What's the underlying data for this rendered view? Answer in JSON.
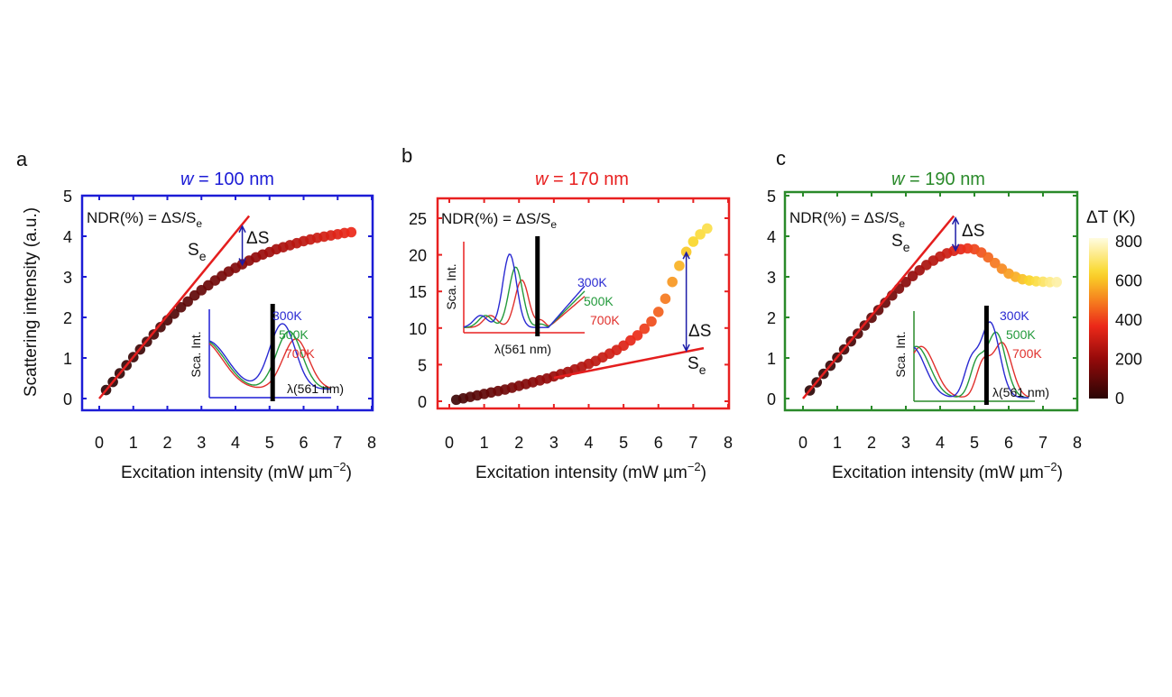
{
  "chart_data": [
    {
      "panel_label": "a",
      "type": "scatter",
      "title_var": "w",
      "title_rest": " = 100 nm",
      "frame_color": "#1c1cd6",
      "xlabel": {
        "main": "Excitation intensity (mW µm",
        "sup": "−2",
        "end": ")"
      },
      "ylabel": "Scattering intensity (a.u.)",
      "xlim": [
        0,
        8
      ],
      "ylim": [
        0,
        5
      ],
      "xticks": [
        "0",
        "1",
        "2",
        "3",
        "4",
        "5",
        "6",
        "7",
        "8"
      ],
      "yticks": [
        "0",
        "1",
        "2",
        "3",
        "4",
        "5"
      ],
      "formula": {
        "main": "NDR(%) = ΔS/S",
        "sub": "e"
      },
      "se_label": {
        "main": "S",
        "sub": "e"
      },
      "delta_label": "ΔS",
      "series": {
        "x": [
          0.2,
          0.4,
          0.6,
          0.8,
          1.0,
          1.2,
          1.4,
          1.6,
          1.8,
          2.0,
          2.2,
          2.4,
          2.6,
          2.8,
          3.0,
          3.2,
          3.4,
          3.6,
          3.8,
          4.0,
          4.2,
          4.4,
          4.6,
          4.8,
          5.0,
          5.2,
          5.4,
          5.6,
          5.8,
          6.0,
          6.2,
          6.4,
          6.6,
          6.8,
          7.0,
          7.2,
          7.4
        ],
        "y": [
          0.21,
          0.41,
          0.62,
          0.82,
          1.02,
          1.21,
          1.4,
          1.58,
          1.76,
          1.93,
          2.09,
          2.25,
          2.39,
          2.54,
          2.67,
          2.79,
          2.91,
          3.02,
          3.13,
          3.22,
          3.31,
          3.4,
          3.48,
          3.55,
          3.61,
          3.68,
          3.73,
          3.78,
          3.83,
          3.88,
          3.92,
          3.96,
          3.99,
          4.02,
          4.05,
          4.08,
          4.1
        ]
      },
      "se_line": {
        "x": [
          0,
          4.4
        ],
        "y": [
          0,
          4.5
        ]
      },
      "delta_arrow": {
        "x": 4.2,
        "y": [
          3.3,
          4.25
        ]
      },
      "inset": {
        "ylabel": "Sca. Int.",
        "xlabel": "λ(561 nm)",
        "legend": [
          "300K",
          "500K",
          "700K"
        ],
        "colors": [
          "#2a2ad2",
          "#239a3c",
          "#e0302c"
        ]
      }
    },
    {
      "panel_label": "b",
      "type": "scatter",
      "title_var": "w",
      "title_rest": " = 170 nm",
      "frame_color": "#e82020",
      "xlabel": {
        "main": "Excitation intensity (mW µm",
        "sup": "−2",
        "end": ")"
      },
      "xlim": [
        0,
        8
      ],
      "ylim": [
        0,
        25
      ],
      "xticks": [
        "0",
        "1",
        "2",
        "3",
        "4",
        "5",
        "6",
        "7",
        "8"
      ],
      "yticks": [
        "0",
        "5",
        "10",
        "15",
        "20",
        "25"
      ],
      "formula": {
        "main": "NDR(%) = ΔS/S",
        "sub": "e"
      },
      "se_label": {
        "main": "S",
        "sub": "e"
      },
      "delta_label": "ΔS",
      "series": {
        "x": [
          0.2,
          0.4,
          0.6,
          0.8,
          1.0,
          1.2,
          1.4,
          1.6,
          1.8,
          2.0,
          2.2,
          2.4,
          2.6,
          2.8,
          3.0,
          3.2,
          3.4,
          3.6,
          3.8,
          4.0,
          4.2,
          4.4,
          4.6,
          4.8,
          5.0,
          5.2,
          5.4,
          5.6,
          5.8,
          6.0,
          6.2,
          6.4,
          6.6,
          6.8,
          7.0,
          7.2,
          7.4
        ],
        "y": [
          0.2,
          0.4,
          0.6,
          0.8,
          1.0,
          1.2,
          1.4,
          1.6,
          1.85,
          2.1,
          2.35,
          2.6,
          2.85,
          3.1,
          3.4,
          3.7,
          4.0,
          4.35,
          4.7,
          5.1,
          5.5,
          6.0,
          6.5,
          7.0,
          7.6,
          8.3,
          9.0,
          9.9,
          10.9,
          12.2,
          14.0,
          16.3,
          18.5,
          20.4,
          21.8,
          22.8,
          23.6
        ]
      },
      "se_line": {
        "x": [
          3.0,
          7.3
        ],
        "y": [
          3.2,
          7.25
        ]
      },
      "delta_arrow": {
        "x": 6.8,
        "y": [
          6.9,
          20.3
        ]
      },
      "inset": {
        "ylabel": "Sca. Int.",
        "xlabel": "λ(561 nm)",
        "legend": [
          "300K",
          "500K",
          "700K"
        ],
        "colors": [
          "#2a2ad2",
          "#239a3c",
          "#e0302c"
        ]
      }
    },
    {
      "panel_label": "c",
      "type": "scatter",
      "title_var": "w",
      "title_rest": " = 190 nm",
      "frame_color": "#2a8a2a",
      "xlabel": {
        "main": "Excitation intensity (mW µm",
        "sup": "−2",
        "end": ")"
      },
      "xlim": [
        0,
        8
      ],
      "ylim": [
        0,
        5
      ],
      "xticks": [
        "0",
        "1",
        "2",
        "3",
        "4",
        "5",
        "6",
        "7",
        "8"
      ],
      "yticks": [
        "0",
        "1",
        "2",
        "3",
        "4",
        "5"
      ],
      "formula": {
        "main": "NDR(%) = ΔS/S",
        "sub": "e"
      },
      "se_label": {
        "main": "S",
        "sub": "e"
      },
      "delta_label": "ΔS",
      "series": {
        "x": [
          0.2,
          0.4,
          0.6,
          0.8,
          1.0,
          1.2,
          1.4,
          1.6,
          1.8,
          2.0,
          2.2,
          2.4,
          2.6,
          2.8,
          3.0,
          3.2,
          3.4,
          3.6,
          3.8,
          4.0,
          4.2,
          4.4,
          4.6,
          4.8,
          5.0,
          5.2,
          5.4,
          5.6,
          5.8,
          6.0,
          6.2,
          6.4,
          6.6,
          6.8,
          7.0,
          7.2,
          7.4
        ],
        "y": [
          0.2,
          0.4,
          0.61,
          0.81,
          1.01,
          1.21,
          1.41,
          1.6,
          1.8,
          1.99,
          2.18,
          2.36,
          2.54,
          2.71,
          2.87,
          3.02,
          3.16,
          3.29,
          3.4,
          3.5,
          3.58,
          3.64,
          3.68,
          3.7,
          3.68,
          3.6,
          3.48,
          3.34,
          3.2,
          3.08,
          3.0,
          2.94,
          2.91,
          2.89,
          2.88,
          2.87,
          2.87
        ]
      },
      "se_line": {
        "x": [
          0,
          4.4
        ],
        "y": [
          0,
          4.5
        ]
      },
      "delta_arrow": {
        "x": 4.45,
        "y": [
          3.65,
          4.45
        ]
      },
      "inset": {
        "ylabel": "Sca. Int.",
        "xlabel": "λ(561 nm)",
        "legend": [
          "300K",
          "500K",
          "700K"
        ],
        "colors": [
          "#2a2ad2",
          "#239a3c",
          "#e0302c"
        ]
      }
    }
  ],
  "colorbar": {
    "title": "ΔT (K)",
    "ticks": [
      "0",
      "200",
      "400",
      "600",
      "800"
    ],
    "colors": [
      "#2a0505",
      "#960a0a",
      "#eb2819",
      "#f57a1e",
      "#fad728",
      "#fffce1"
    ]
  },
  "se_color": "#e41e1e",
  "arrow_color": "#1c1ca8"
}
